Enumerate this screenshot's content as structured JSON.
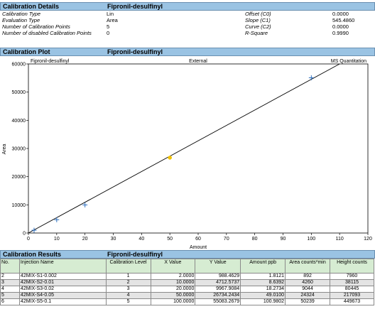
{
  "calibration_details": {
    "header": "Calibration Details",
    "compound": "Fipronil-desulfinyl",
    "rows_left": [
      {
        "label": "Calibration Type",
        "value": "Lin"
      },
      {
        "label": "Evaluation Type",
        "value": "Area"
      },
      {
        "label": "Number of Calibration Points",
        "value": "5"
      },
      {
        "label": "Number of disabled Calibration Points",
        "value": "0"
      }
    ],
    "rows_right": [
      {
        "label": "Offset (C0)",
        "value": "0.0000"
      },
      {
        "label": "Slope (C1)",
        "value": "545.4860"
      },
      {
        "label": "Curve (C2)",
        "value": "0.0000"
      },
      {
        "label": "R-Square",
        "value": "0.9990"
      }
    ]
  },
  "calibration_plot": {
    "header": "Calibration Plot",
    "compound": "Fipronil-desulfinyl",
    "plot_title_left": "Fipronil-desulfinyl",
    "plot_title_center": "External",
    "plot_title_right": "MS Quantitation"
  },
  "chart_data": {
    "type": "scatter",
    "xlabel": "Amount",
    "ylabel": "Area",
    "xlim": [
      0,
      120
    ],
    "ylim": [
      0,
      60000
    ],
    "xticks": [
      0,
      10,
      20,
      30,
      40,
      50,
      60,
      70,
      80,
      90,
      100,
      110,
      120
    ],
    "yticks": [
      0,
      10000,
      20000,
      30000,
      40000,
      50000,
      60000
    ],
    "points": [
      {
        "x": 2.0,
        "y": 988.4629
      },
      {
        "x": 10.0,
        "y": 4712.5737
      },
      {
        "x": 20.0,
        "y": 9967.9084
      },
      {
        "x": 50.0,
        "y": 26734.2434
      },
      {
        "x": 100.0,
        "y": 55083.2679
      }
    ],
    "highlight_index": 3,
    "highlight_color": "#f2c200",
    "marker_color": "#2e6fbf",
    "fit_line": {
      "slope": 545.486,
      "offset": 0,
      "x_end": 110
    }
  },
  "calibration_results": {
    "header": "Calibration Results",
    "compound": "Fipronil-desulfinyl",
    "columns": [
      "No.",
      "Injection Name",
      "Calibration Level",
      "X Value",
      "Y Value",
      "Amount ppb",
      "Area counts*min",
      "Height counts"
    ],
    "rows": [
      [
        "2",
        "42MIX-S1-0.002",
        "1",
        "2.0000",
        "988.4629",
        "1.8121",
        "892",
        "7960"
      ],
      [
        "3",
        "42MIX-S2-0.01",
        "2",
        "10.0000",
        "4712.5737",
        "8.6392",
        "4260",
        "38115"
      ],
      [
        "4",
        "42MIX-S3-0.02",
        "3",
        "20.0000",
        "9967.9084",
        "18.2734",
        "9044",
        "80445"
      ],
      [
        "5",
        "42MIX-S4-0.05",
        "4",
        "50.0000",
        "26734.2434",
        "49.0100",
        "24324",
        "217093"
      ],
      [
        "6",
        "42MIX-S5-0.1",
        "5",
        "100.0000",
        "55083.2679",
        "100.9802",
        "50239",
        "449673"
      ]
    ]
  }
}
